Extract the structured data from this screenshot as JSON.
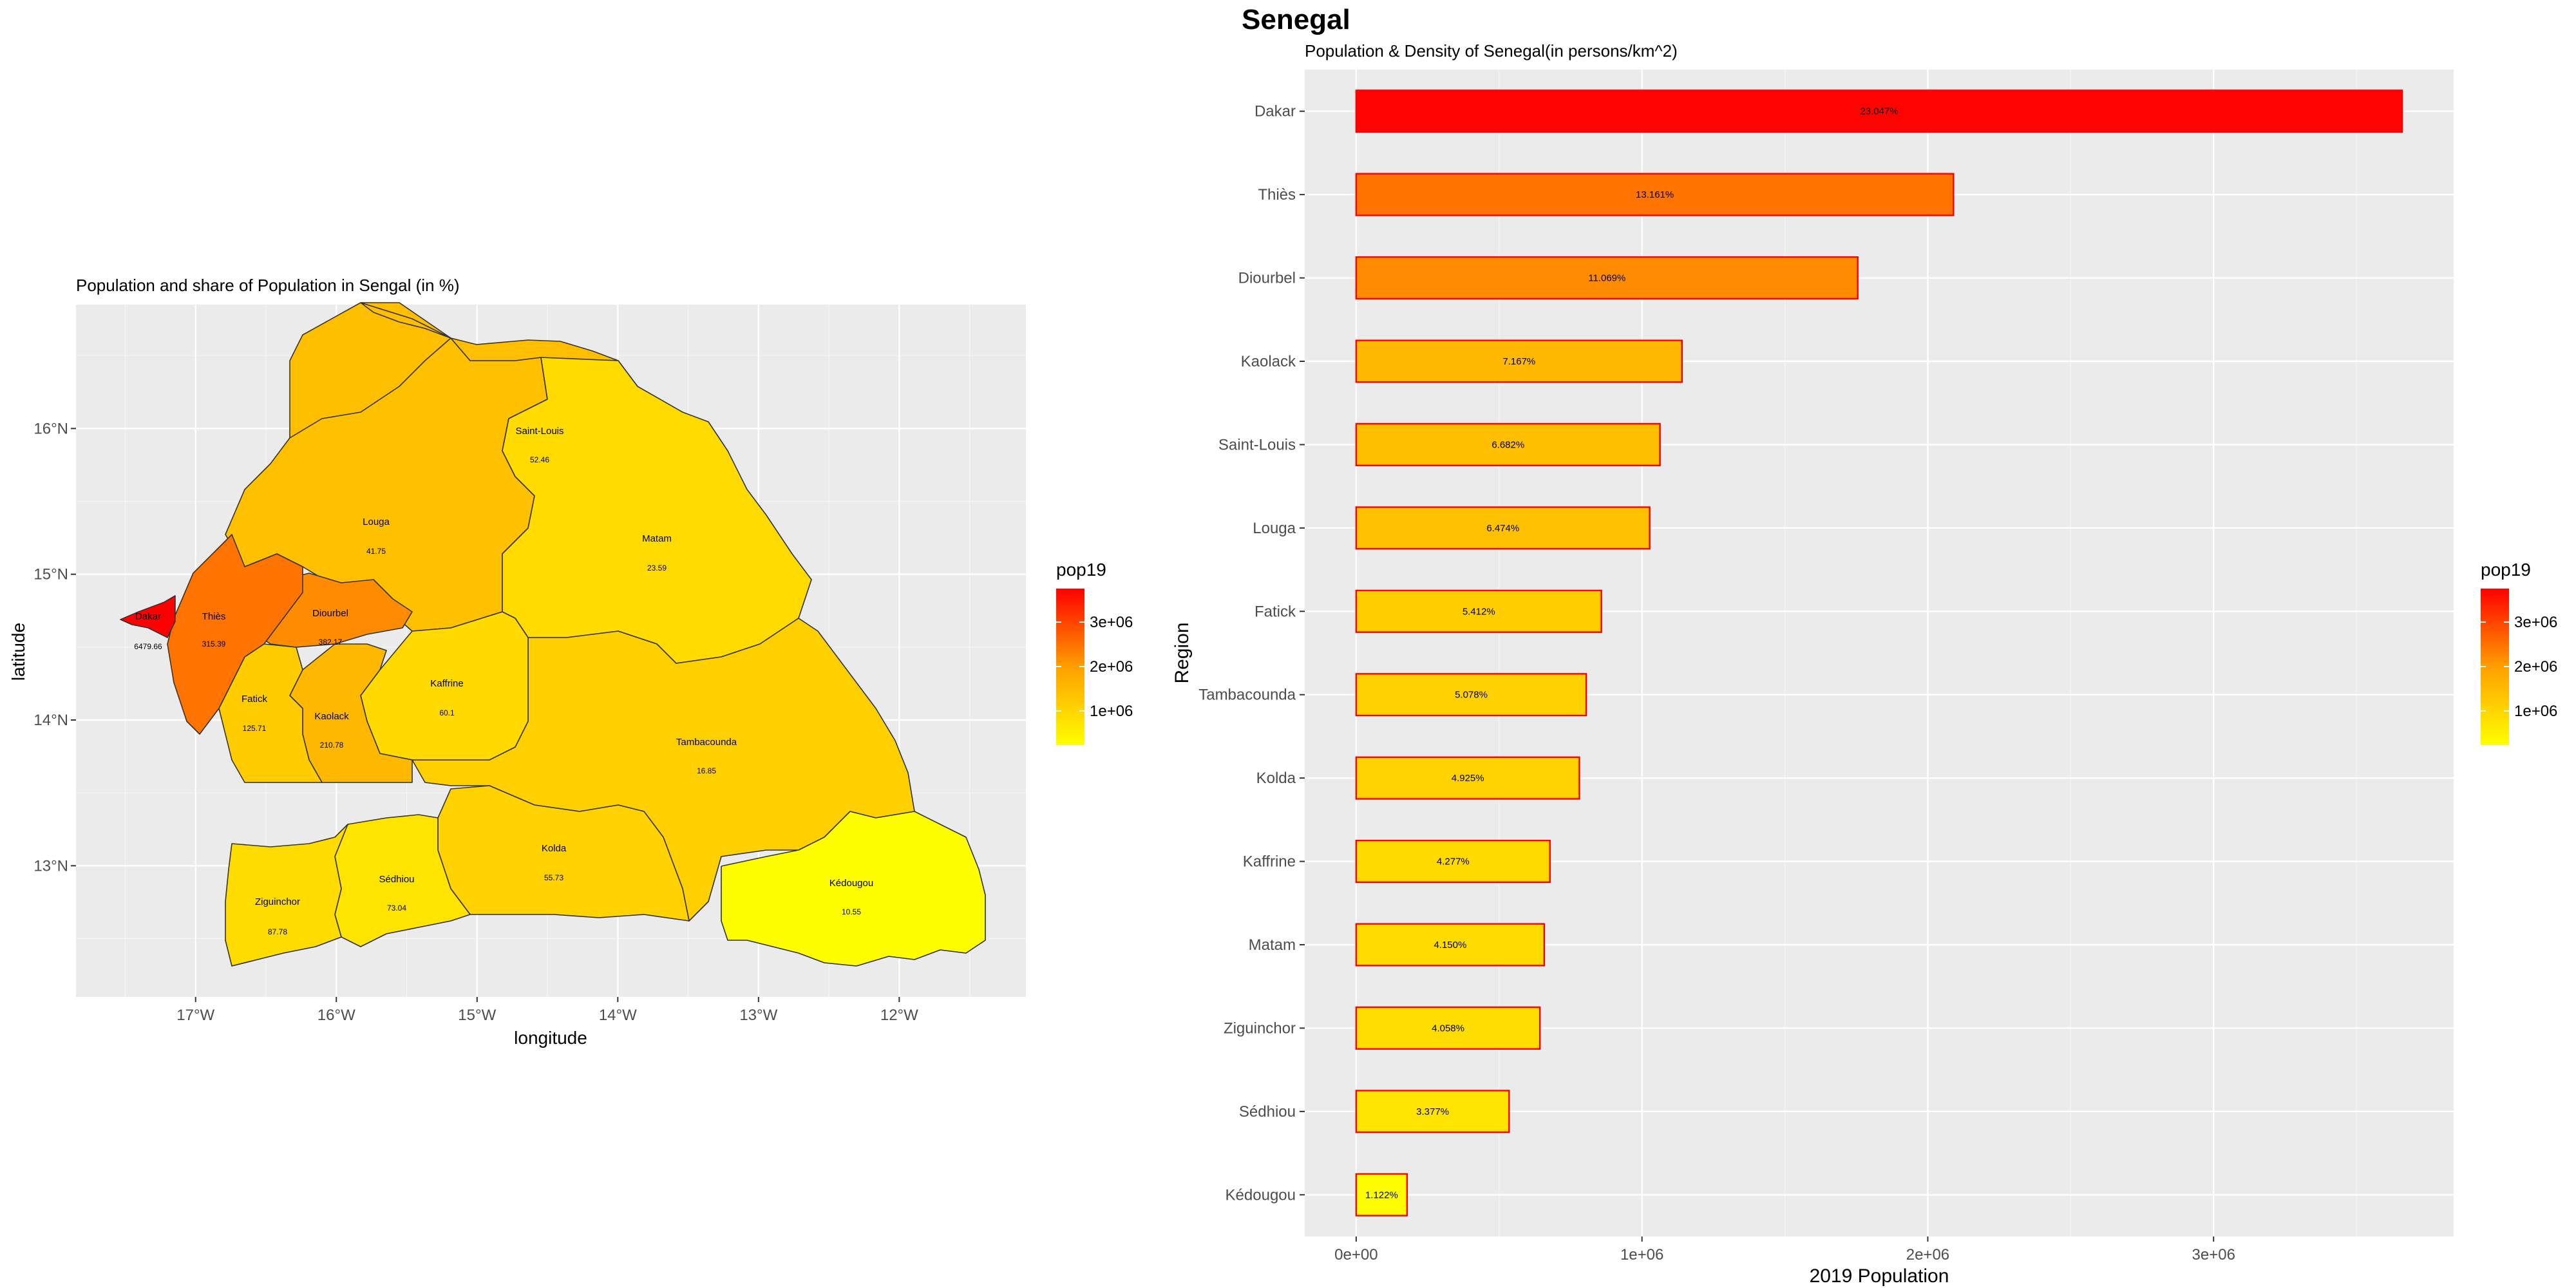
{
  "page_title": "Senegal",
  "chart_data": [
    {
      "type": "map",
      "title": "Population and share of Population in Sengal (in %)",
      "xlabel": "longitude",
      "ylabel": "latitude",
      "x_ticks": [
        "17°W",
        "16°W",
        "15°W",
        "14°W",
        "13°W",
        "12°W"
      ],
      "y_ticks": [
        "13°N",
        "14°N",
        "15°N",
        "16°N"
      ],
      "xlim": [
        -17.85,
        -11.1
      ],
      "ylim": [
        12.1,
        16.85
      ],
      "grid": true,
      "legend": {
        "title": "pop19",
        "position": "right",
        "labels": [
          "3e+06",
          "2e+06",
          "1e+06"
        ],
        "range": [
          166000,
          3700000
        ]
      },
      "colors": {
        "low": "#ffff00",
        "high": "#ff0000",
        "panel": "#ebebeb",
        "grid": "#ffffff",
        "border": "#333333"
      },
      "regions": [
        {
          "name": "Dakar",
          "value": "6479.66",
          "pop19": 3732284
        },
        {
          "name": "Thiès",
          "value": "315.39",
          "pop19": 2110000
        },
        {
          "name": "Diourbel",
          "value": "382.17",
          "pop19": 1775000
        },
        {
          "name": "Fatick",
          "value": "125.71",
          "pop19": 868000
        },
        {
          "name": "Kaolack",
          "value": "210.78",
          "pop19": 1149000
        },
        {
          "name": "Louga",
          "value": "41.75",
          "pop19": 1038000
        },
        {
          "name": "Saint-Louis",
          "value": "52.46",
          "pop19": 1071000
        },
        {
          "name": "Matam",
          "value": "23.59",
          "pop19": 665000
        },
        {
          "name": "Kaffrine",
          "value": "60.1",
          "pop19": 686000
        },
        {
          "name": "Tambacounda",
          "value": "16.85",
          "pop19": 814000
        },
        {
          "name": "Kolda",
          "value": "55.73",
          "pop19": 790000
        },
        {
          "name": "Kédougou",
          "value": "10.55",
          "pop19": 180000
        },
        {
          "name": "Sédhiou",
          "value": "73.04",
          "pop19": 541000
        },
        {
          "name": "Ziguinchor",
          "value": "87.78",
          "pop19": 651000
        }
      ]
    },
    {
      "type": "bar",
      "orientation": "horizontal",
      "title": "Population & Density of Senegal(in persons/km^2)",
      "xlabel": "2019 Population",
      "ylabel": "Region",
      "xlim": [
        -180000,
        3840000
      ],
      "x_ticks": [
        {
          "value": 0,
          "label": "0e+00"
        },
        {
          "value": 1000000,
          "label": "1e+06"
        },
        {
          "value": 2000000,
          "label": "2e+06"
        },
        {
          "value": 3000000,
          "label": "3e+06"
        }
      ],
      "grid": true,
      "legend": {
        "title": "pop19",
        "position": "right",
        "labels": [
          "3e+06",
          "2e+06",
          "1e+06"
        ]
      },
      "colors": {
        "low": "#ffff00",
        "high": "#ff0000",
        "bar_outline": "#ff0000",
        "panel": "#ebebeb",
        "grid": "#ffffff"
      },
      "categories": [
        "Dakar",
        "Thiès",
        "Diourbel",
        "Kaolack",
        "Saint-Louis",
        "Louga",
        "Fatick",
        "Tambacounda",
        "Kolda",
        "Kaffrine",
        "Matam",
        "Ziguinchor",
        "Sédhiou",
        "Kédougou"
      ],
      "values": [
        3660000,
        2090000,
        1755000,
        1140000,
        1063000,
        1027000,
        858000,
        805000,
        781000,
        678000,
        658000,
        643000,
        535000,
        178000
      ],
      "data_labels": [
        "23.047%",
        "13.161%",
        "11.069%",
        "7.167%",
        "6.682%",
        "6.474%",
        "5.412%",
        "5.078%",
        "4.925%",
        "4.277%",
        "4.150%",
        "4.058%",
        "3.377%",
        "1.122%"
      ]
    }
  ]
}
